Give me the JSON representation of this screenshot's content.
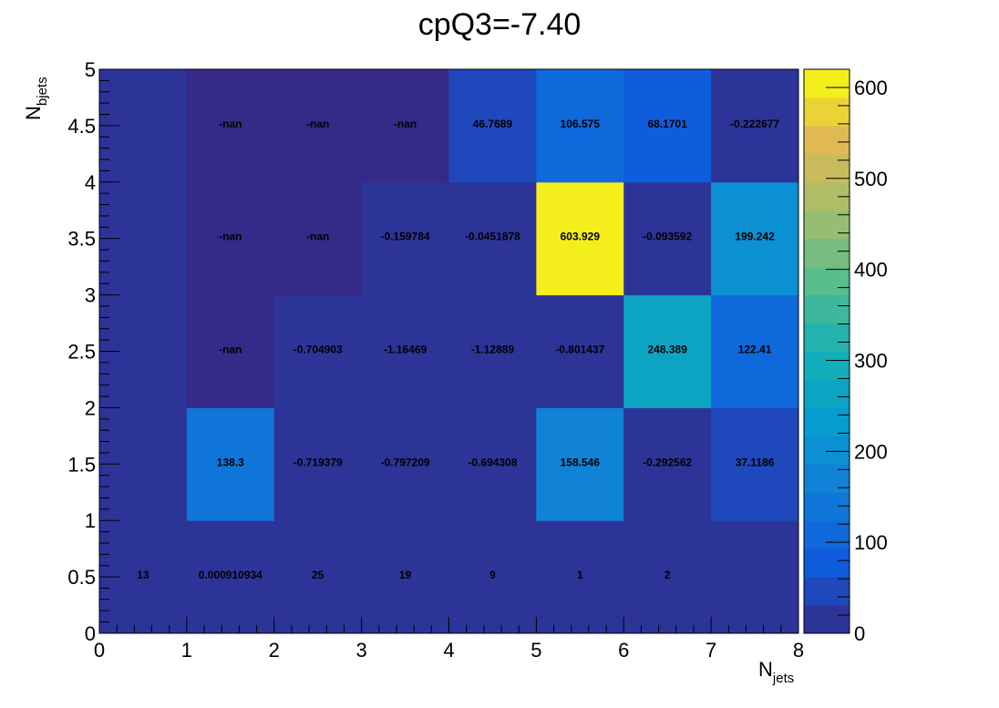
{
  "chart_data": {
    "type": "heatmap",
    "title": "cpQ3=-7.40",
    "xlabel": "N",
    "xlabel_sub": "jets",
    "ylabel": "N",
    "ylabel_sub": "bjets",
    "xlim": [
      0,
      8
    ],
    "ylim": [
      0,
      5
    ],
    "x_bin_edges": [
      0,
      1,
      2,
      3,
      4,
      5,
      6,
      7,
      8
    ],
    "y_bin_edges": [
      0,
      1,
      2,
      3,
      4,
      5
    ],
    "x_ticks": [
      "0",
      "1",
      "2",
      "3",
      "4",
      "5",
      "6",
      "7",
      "8"
    ],
    "y_ticks": [
      "0",
      "0.5",
      "1",
      "1.5",
      "2",
      "2.5",
      "3",
      "3.5",
      "4",
      "4.5",
      "5"
    ],
    "zlim": [
      0,
      620
    ],
    "z_ticks": [
      "0",
      "100",
      "200",
      "300",
      "400",
      "500",
      "600"
    ],
    "colormap": "parula",
    "nan_color": "#352a87",
    "cells": [
      [
        "13",
        "0.000910934",
        "25",
        "19",
        "9",
        "1",
        "2",
        ""
      ],
      [
        "",
        "138.3",
        "-0.719379",
        "-0.797209",
        "-0.694308",
        "158.546",
        "-0.292562",
        "37.1186"
      ],
      [
        "",
        "-nan",
        "-0.704903",
        "-1.16469",
        "-1.12889",
        "-0.801437",
        "248.389",
        "122.41"
      ],
      [
        "",
        "-nan",
        "-nan",
        "-0.159784",
        "-0.0451878",
        "603.929",
        "-0.093592",
        "199.242"
      ],
      [
        "",
        "-nan",
        "-nan",
        "-nan",
        "46.7689",
        "106.575",
        "68.1701",
        "-0.222677"
      ]
    ],
    "grid": false,
    "legend": "color-bar-right"
  }
}
